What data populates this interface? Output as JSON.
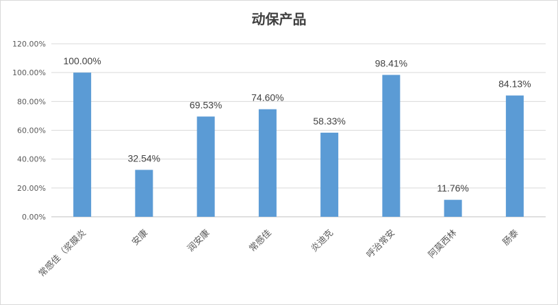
{
  "chart_data": {
    "type": "bar",
    "title": "动保产品",
    "categories": [
      "常感佳（浆膜炎",
      "安康",
      "润安康",
      "常感佳",
      "炎迪克",
      "呼治常安",
      "阿莫西林",
      "肠泰"
    ],
    "values": [
      100.0,
      32.54,
      69.53,
      74.6,
      58.33,
      98.41,
      11.76,
      84.13
    ],
    "data_labels": [
      "100.00%",
      "32.54%",
      "69.53%",
      "74.60%",
      "58.33%",
      "98.41%",
      "11.76%",
      "84.13%"
    ],
    "y_ticks": [
      "0.00%",
      "20.00%",
      "40.00%",
      "60.00%",
      "80.00%",
      "100.00%",
      "120.00%"
    ],
    "ylim": [
      0,
      120
    ],
    "bar_color": "#5b9bd5",
    "grid": true,
    "legend": "none"
  }
}
